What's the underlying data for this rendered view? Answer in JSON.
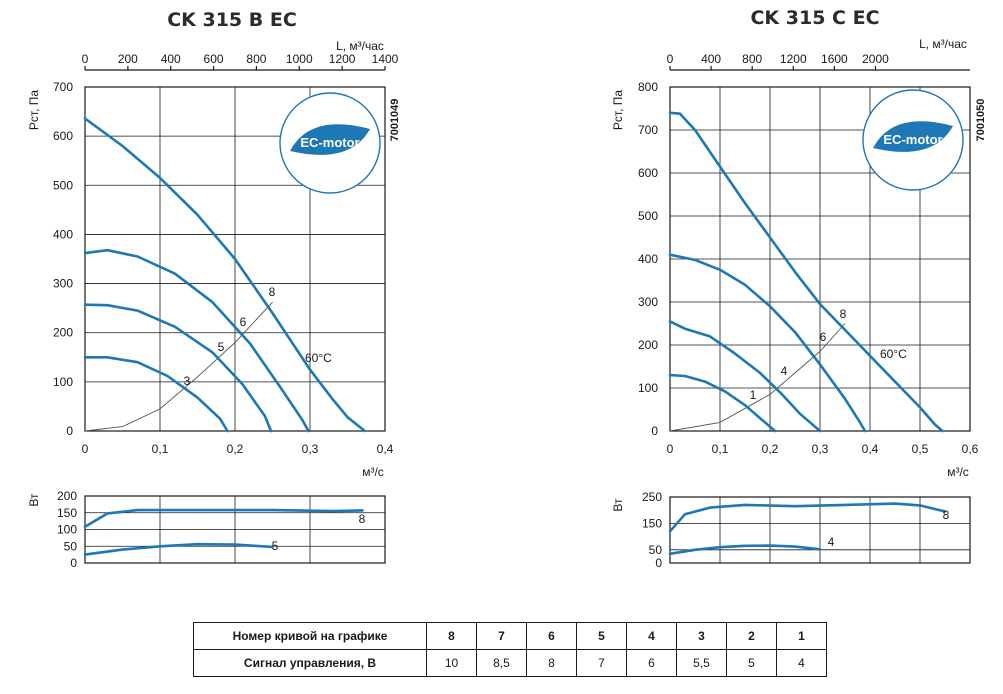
{
  "chart_data": [
    {
      "type": "line",
      "title": "CK 315 B EC",
      "code": "7001049",
      "badge": "EC-motor",
      "pressure_chart": {
        "xlabel": "м³/с",
        "x2label": "L, м³/час",
        "ylabel": "Pст, Па",
        "xlim": [
          0,
          0.4
        ],
        "ylim": [
          0,
          700
        ],
        "x_ticks": [
          "0",
          "0,1",
          "0,2",
          "0,3",
          "0,4"
        ],
        "x2_ticks": [
          "0",
          "200",
          "400",
          "600",
          "800",
          "1000",
          "1200",
          "1400"
        ],
        "y_ticks": [
          "0",
          "100",
          "200",
          "300",
          "400",
          "500",
          "600",
          "700"
        ],
        "series": [
          {
            "name": "8",
            "x": [
              0,
              0.05,
              0.1,
              0.15,
              0.2,
              0.25,
              0.3,
              0.33,
              0.35,
              0.373
            ],
            "y": [
              636,
              580,
              515,
              440,
              350,
              240,
              125,
              65,
              28,
              0
            ]
          },
          {
            "name": "6",
            "x": [
              0,
              0.03,
              0.07,
              0.12,
              0.17,
              0.22,
              0.26,
              0.29,
              0.298
            ],
            "y": [
              362,
              368,
              355,
              320,
              262,
              178,
              90,
              22,
              0
            ]
          },
          {
            "name": "5",
            "x": [
              0,
              0.03,
              0.07,
              0.12,
              0.17,
              0.21,
              0.24,
              0.248
            ],
            "y": [
              257,
              256,
              245,
              212,
              160,
              95,
              30,
              0
            ]
          },
          {
            "name": "3",
            "x": [
              0,
              0.03,
              0.07,
              0.11,
              0.15,
              0.18,
              0.19
            ],
            "y": [
              150,
              150,
              140,
              112,
              68,
              25,
              0
            ]
          }
        ],
        "system_curve": {
          "x": [
            0,
            0.05,
            0.1,
            0.15,
            0.2,
            0.25
          ],
          "y": [
            0,
            9,
            45,
            110,
            180,
            262
          ]
        },
        "temperature_label": "60°C",
        "curve_labels": [
          "8",
          "6",
          "5",
          "3"
        ]
      },
      "power_chart": {
        "ylabel": "Вт",
        "xlim": [
          0,
          0.4
        ],
        "ylim": [
          0,
          200
        ],
        "y_ticks": [
          "0",
          "50",
          "100",
          "150",
          "200"
        ],
        "series": [
          {
            "name": "8",
            "x": [
              0,
              0.03,
              0.07,
              0.15,
              0.25,
              0.33,
              0.37
            ],
            "y": [
              108,
              148,
              158,
              158,
              158,
              155,
              157
            ]
          },
          {
            "name": "5",
            "x": [
              0,
              0.05,
              0.1,
              0.15,
              0.2,
              0.25
            ],
            "y": [
              25,
              40,
              50,
              56,
              55,
              48
            ]
          }
        ]
      }
    },
    {
      "type": "line",
      "title": "CK 315 C EC",
      "code": "7001050",
      "badge": "EC-motor",
      "pressure_chart": {
        "xlabel": "м³/с",
        "x2label": "L, м³/час",
        "ylabel": "Pст, Па",
        "xlim": [
          0,
          0.6
        ],
        "ylim": [
          0,
          800
        ],
        "x_ticks": [
          "0",
          "0,1",
          "0,2",
          "0,3",
          "0,4",
          "0,5",
          "0,6"
        ],
        "x2_ticks": [
          "0",
          "400",
          "800",
          "1200",
          "1600",
          "2000"
        ],
        "y_ticks": [
          "0",
          "100",
          "200",
          "300",
          "400",
          "500",
          "600",
          "700",
          "800"
        ],
        "series": [
          {
            "name": "8",
            "x": [
              0,
              0.02,
              0.05,
              0.1,
              0.15,
              0.2,
              0.25,
              0.3,
              0.35,
              0.4,
              0.45,
              0.5,
              0.53,
              0.545
            ],
            "y": [
              740,
              738,
              700,
              615,
              530,
              450,
              370,
              295,
              235,
              175,
              115,
              55,
              15,
              0
            ]
          },
          {
            "name": "6",
            "x": [
              0,
              0.05,
              0.1,
              0.15,
              0.2,
              0.25,
              0.3,
              0.35,
              0.38,
              0.39
            ],
            "y": [
              410,
              398,
              375,
              340,
              290,
              230,
              155,
              75,
              20,
              0
            ]
          },
          {
            "name": "4",
            "x": [
              0,
              0.03,
              0.08,
              0.13,
              0.18,
              0.22,
              0.26,
              0.29,
              0.3
            ],
            "y": [
              255,
              238,
              220,
              180,
              135,
              90,
              40,
              10,
              0
            ]
          },
          {
            "name": "1",
            "x": [
              0,
              0.03,
              0.07,
              0.11,
              0.15,
              0.18,
              0.2,
              0.21
            ],
            "y": [
              130,
              128,
              115,
              92,
              60,
              30,
              10,
              0
            ]
          }
        ],
        "system_curve": {
          "x": [
            0,
            0.1,
            0.2,
            0.25,
            0.3,
            0.35
          ],
          "y": [
            0,
            20,
            85,
            135,
            185,
            250
          ]
        },
        "temperature_label": "60°C",
        "curve_labels": [
          "8",
          "6",
          "4",
          "1"
        ]
      },
      "power_chart": {
        "ylabel": "Вт",
        "xlim": [
          0,
          0.6
        ],
        "ylim": [
          0,
          250
        ],
        "y_ticks": [
          "0",
          "50",
          "150",
          "250"
        ],
        "series": [
          {
            "name": "8",
            "x": [
              0,
              0.03,
              0.08,
              0.15,
              0.25,
              0.35,
              0.45,
              0.5,
              0.55
            ],
            "y": [
              120,
              185,
              210,
              220,
              215,
              220,
              225,
              218,
              195
            ]
          },
          {
            "name": "4",
            "x": [
              0,
              0.05,
              0.1,
              0.15,
              0.2,
              0.25,
              0.3
            ],
            "y": [
              35,
              50,
              60,
              65,
              66,
              62,
              52
            ]
          }
        ]
      }
    }
  ],
  "table": {
    "row1_label": "Номер кривой на графике",
    "row2_label": "Сигнал управления, В",
    "curve_numbers": [
      "8",
      "7",
      "6",
      "5",
      "4",
      "3",
      "2",
      "1"
    ],
    "signals": [
      "10",
      "8,5",
      "8",
      "7",
      "6",
      "5,5",
      "5",
      "4"
    ]
  }
}
